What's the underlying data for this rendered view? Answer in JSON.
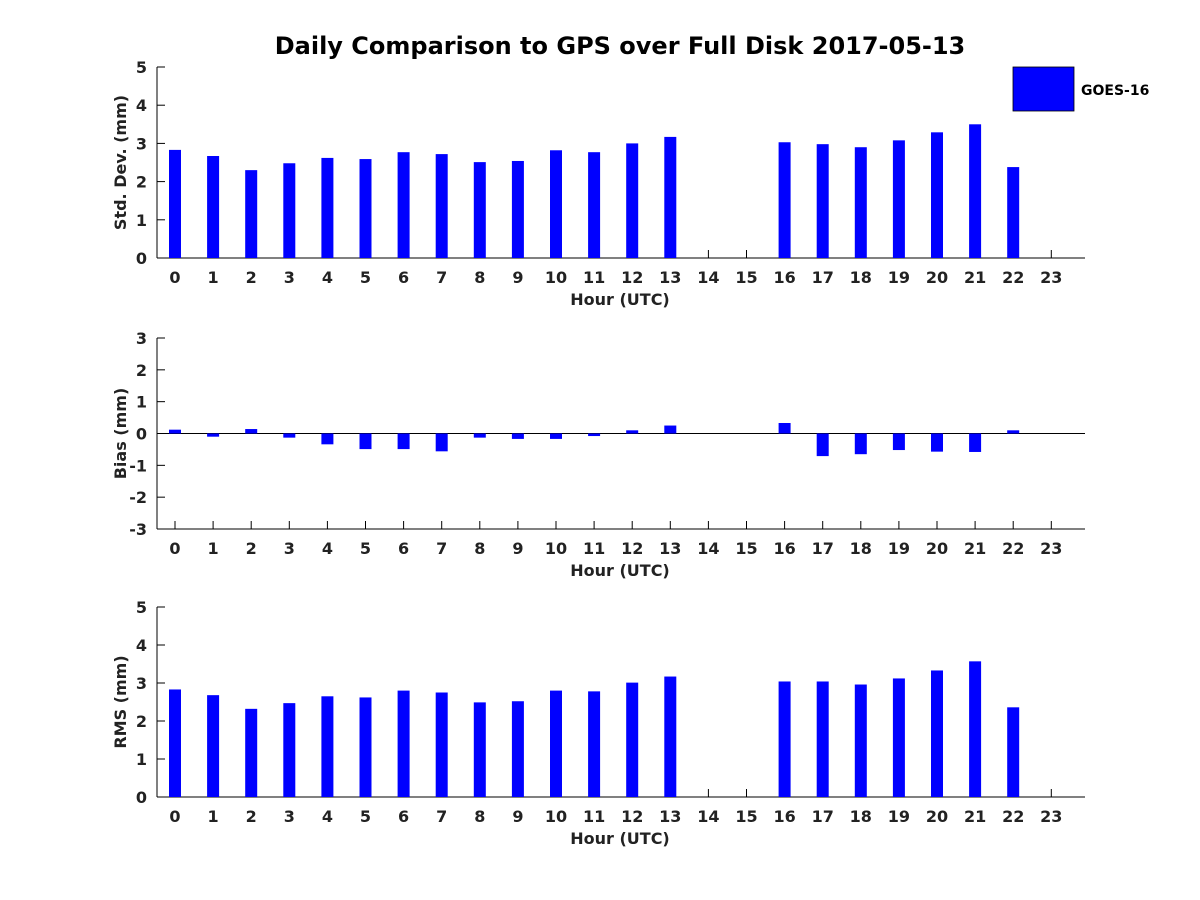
{
  "figure": {
    "title": "Daily Comparison to GPS over Full Disk 2017-05-13",
    "legend": {
      "label": "GOES-16",
      "color": "#0000FF",
      "placement": "top-right"
    }
  },
  "chart_data": [
    {
      "type": "bar",
      "xlabel": "Hour (UTC)",
      "ylabel": "Std. Dev. (mm)",
      "ylim": [
        0,
        5
      ],
      "yticks": [
        0,
        1,
        2,
        3,
        4,
        5
      ],
      "categories": [
        "0",
        "1",
        "2",
        "3",
        "4",
        "5",
        "6",
        "7",
        "8",
        "9",
        "10",
        "11",
        "12",
        "13",
        "14",
        "15",
        "16",
        "17",
        "18",
        "19",
        "20",
        "21",
        "22",
        "23"
      ],
      "series": [
        {
          "name": "GOES-16",
          "color": "#0000FF",
          "values": [
            2.83,
            2.67,
            2.3,
            2.48,
            2.62,
            2.59,
            2.77,
            2.72,
            2.51,
            2.54,
            2.82,
            2.77,
            3.0,
            3.17,
            null,
            null,
            3.03,
            2.98,
            2.9,
            3.08,
            3.29,
            3.5,
            2.38,
            null
          ]
        }
      ]
    },
    {
      "type": "bar",
      "xlabel": "Hour (UTC)",
      "ylabel": "Bias (mm)",
      "ylim": [
        -3,
        3
      ],
      "yticks": [
        -3,
        -2,
        -1,
        0,
        1,
        2,
        3
      ],
      "categories": [
        "0",
        "1",
        "2",
        "3",
        "4",
        "5",
        "6",
        "7",
        "8",
        "9",
        "10",
        "11",
        "12",
        "13",
        "14",
        "15",
        "16",
        "17",
        "18",
        "19",
        "20",
        "21",
        "22",
        "23"
      ],
      "series": [
        {
          "name": "GOES-16",
          "color": "#0000FF",
          "values": [
            0.12,
            -0.1,
            0.14,
            -0.13,
            -0.34,
            -0.49,
            -0.49,
            -0.56,
            -0.13,
            -0.17,
            -0.17,
            -0.08,
            0.1,
            0.25,
            null,
            null,
            0.33,
            -0.71,
            -0.65,
            -0.52,
            -0.57,
            -0.58,
            0.1,
            null
          ]
        }
      ]
    },
    {
      "type": "bar",
      "xlabel": "Hour (UTC)",
      "ylabel": "RMS (mm)",
      "ylim": [
        0,
        5
      ],
      "yticks": [
        0,
        1,
        2,
        3,
        4,
        5
      ],
      "categories": [
        "0",
        "1",
        "2",
        "3",
        "4",
        "5",
        "6",
        "7",
        "8",
        "9",
        "10",
        "11",
        "12",
        "13",
        "14",
        "15",
        "16",
        "17",
        "18",
        "19",
        "20",
        "21",
        "22",
        "23"
      ],
      "series": [
        {
          "name": "GOES-16",
          "color": "#0000FF",
          "values": [
            2.83,
            2.68,
            2.32,
            2.47,
            2.65,
            2.62,
            2.8,
            2.75,
            2.49,
            2.52,
            2.8,
            2.78,
            3.01,
            3.17,
            null,
            null,
            3.04,
            3.04,
            2.96,
            3.12,
            3.33,
            3.57,
            2.36,
            null
          ]
        }
      ]
    }
  ]
}
